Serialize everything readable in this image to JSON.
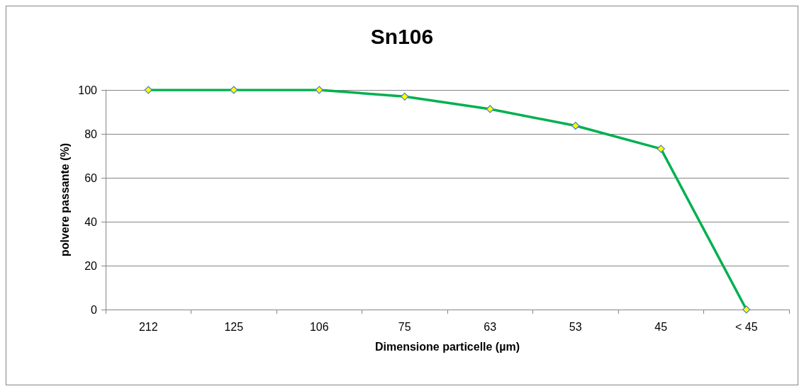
{
  "chart_data": {
    "type": "line",
    "title": "Sn106",
    "xlabel": "Dimensione particelle (µm)",
    "ylabel": "polvere passante (%)",
    "categories": [
      "212",
      "125",
      "106",
      "75",
      "63",
      "53",
      "45",
      "< 45"
    ],
    "series": [
      {
        "color": "#00b050",
        "values": [
          100,
          100,
          100,
          97,
          91.3,
          83.7,
          73.2,
          0
        ]
      }
    ],
    "ylim": [
      0,
      100
    ],
    "yticks": [
      0,
      20,
      40,
      60,
      80,
      100
    ],
    "grid": "y",
    "marker": "diamond",
    "line_style": "solid"
  }
}
